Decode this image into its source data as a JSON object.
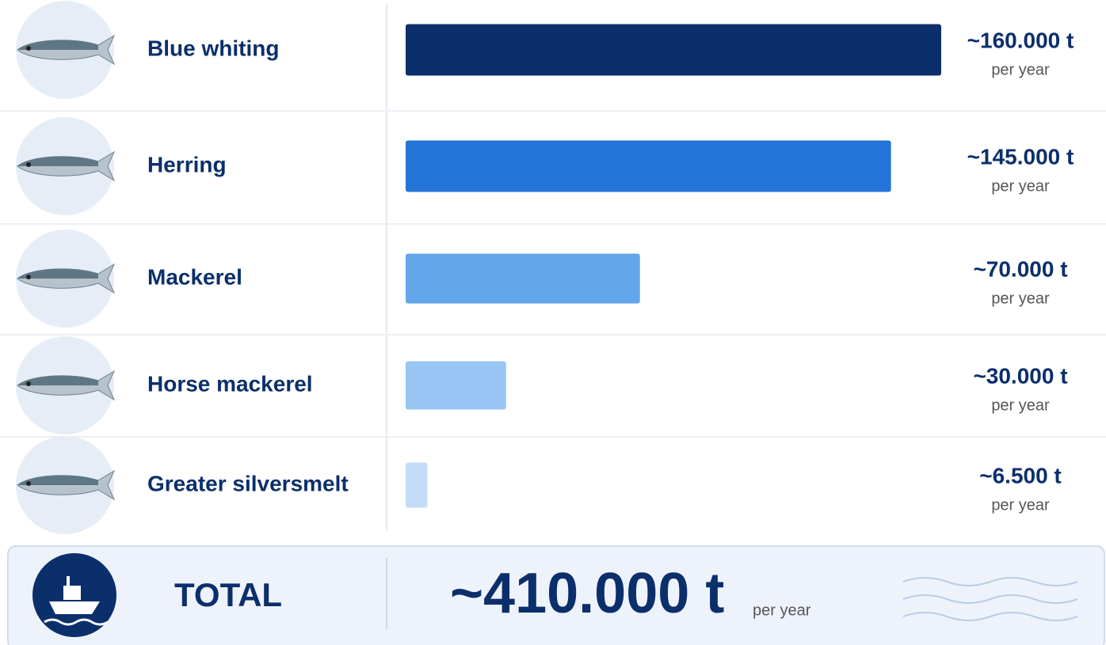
{
  "chart_data": {
    "type": "bar",
    "orientation": "horizontal",
    "categories": [
      "Blue whiting",
      "Herring",
      "Mackerel",
      "Horse mackerel",
      "Greater silversmelt"
    ],
    "values": [
      160000,
      145000,
      70000,
      30000,
      6500
    ],
    "value_labels": [
      "~160.000 t",
      "~145.000 t",
      "~70.000 t",
      "~30.000 t",
      "~6.500 t"
    ],
    "colors": [
      "#0b2f6b",
      "#2374d6",
      "#63a6ea",
      "#98c5f4",
      "#c3dcf7"
    ],
    "value_note": "per year",
    "total": {
      "label": "TOTAL",
      "value": 410000,
      "value_label": "~410.000 t"
    }
  }
}
